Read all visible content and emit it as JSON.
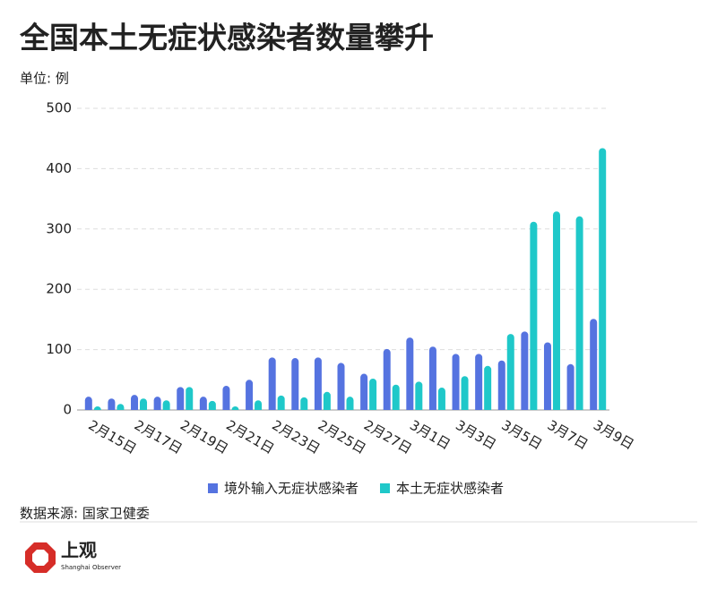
{
  "chart_data": {
    "type": "bar",
    "title": "全国本土无症状感染者数量攀升",
    "unit": "单位: 例",
    "source": "数据来源: 国家卫健委",
    "categories": [
      "2月15日",
      null,
      "2月17日",
      null,
      "2月19日",
      null,
      "2月21日",
      null,
      "2月23日",
      null,
      "2月25日",
      null,
      "2月27日",
      null,
      "3月1日",
      null,
      "3月3日",
      null,
      "3月5日",
      null,
      "3月7日",
      null,
      "3月9日"
    ],
    "series": [
      {
        "name": "境外输入无症状感染者",
        "color": "#5573e0",
        "values": [
          22,
          19,
          25,
          22,
          38,
          22,
          40,
          50,
          87,
          86,
          87,
          78,
          60,
          101,
          120,
          105,
          93,
          93,
          82,
          130,
          112,
          76,
          151
        ]
      },
      {
        "name": "本土无症状感染者",
        "color": "#1fc8c9",
        "values": [
          4,
          10,
          19,
          16,
          38,
          15,
          6,
          16,
          24,
          21,
          30,
          22,
          52,
          42,
          47,
          37,
          56,
          73,
          126,
          312,
          329,
          321,
          434
        ]
      }
    ],
    "ylim": [
      0,
      500
    ],
    "yticks": [
      0,
      100,
      200,
      300,
      400,
      500
    ],
    "grid": true,
    "legend": "bottom"
  },
  "logo": {
    "name": "上观",
    "subtitle": "Shanghai Observer"
  }
}
